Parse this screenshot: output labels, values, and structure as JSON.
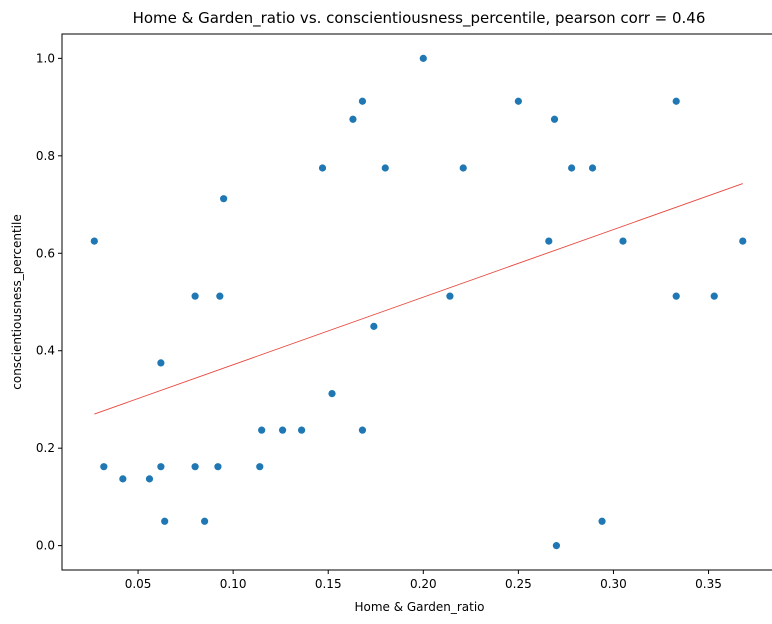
{
  "chart_data": {
    "type": "scatter",
    "title": "Home & Garden_ratio vs. conscientiousness_percentile, pearson corr = 0.46",
    "xlabel": "Home & Garden_ratio",
    "ylabel": "conscientiousness_percentile",
    "xlim": [
      0.01,
      0.386
    ],
    "ylim": [
      -0.05,
      1.05
    ],
    "x_ticks": [
      0.05,
      0.1,
      0.15,
      0.2,
      0.25,
      0.3,
      0.35
    ],
    "x_tick_labels": [
      "0.05",
      "0.10",
      "0.15",
      "0.20",
      "0.25",
      "0.30",
      "0.35"
    ],
    "y_ticks": [
      0.0,
      0.2,
      0.4,
      0.6,
      0.8,
      1.0
    ],
    "y_tick_labels": [
      "0.0",
      "0.2",
      "0.4",
      "0.6",
      "0.8",
      "1.0"
    ],
    "grid": false,
    "point_color": "#1f77b4",
    "trendline": {
      "color": "#e8473c",
      "x": [
        0.027,
        0.368
      ],
      "y": [
        0.27,
        0.743
      ]
    },
    "points": [
      {
        "x": 0.027,
        "y": 0.625
      },
      {
        "x": 0.032,
        "y": 0.162
      },
      {
        "x": 0.042,
        "y": 0.137
      },
      {
        "x": 0.056,
        "y": 0.137
      },
      {
        "x": 0.062,
        "y": 0.375
      },
      {
        "x": 0.062,
        "y": 0.162
      },
      {
        "x": 0.064,
        "y": 0.05
      },
      {
        "x": 0.08,
        "y": 0.512
      },
      {
        "x": 0.08,
        "y": 0.162
      },
      {
        "x": 0.085,
        "y": 0.05
      },
      {
        "x": 0.092,
        "y": 0.162
      },
      {
        "x": 0.093,
        "y": 0.512
      },
      {
        "x": 0.095,
        "y": 0.712
      },
      {
        "x": 0.114,
        "y": 0.162
      },
      {
        "x": 0.115,
        "y": 0.237
      },
      {
        "x": 0.126,
        "y": 0.237
      },
      {
        "x": 0.136,
        "y": 0.237
      },
      {
        "x": 0.147,
        "y": 0.775
      },
      {
        "x": 0.152,
        "y": 0.312
      },
      {
        "x": 0.163,
        "y": 0.875
      },
      {
        "x": 0.168,
        "y": 0.912
      },
      {
        "x": 0.168,
        "y": 0.237
      },
      {
        "x": 0.174,
        "y": 0.45
      },
      {
        "x": 0.18,
        "y": 0.775
      },
      {
        "x": 0.2,
        "y": 1.0
      },
      {
        "x": 0.214,
        "y": 0.512
      },
      {
        "x": 0.221,
        "y": 0.775
      },
      {
        "x": 0.25,
        "y": 0.912
      },
      {
        "x": 0.266,
        "y": 0.625
      },
      {
        "x": 0.269,
        "y": 0.875
      },
      {
        "x": 0.27,
        "y": 0.0
      },
      {
        "x": 0.278,
        "y": 0.775
      },
      {
        "x": 0.289,
        "y": 0.775
      },
      {
        "x": 0.294,
        "y": 0.05
      },
      {
        "x": 0.305,
        "y": 0.625
      },
      {
        "x": 0.333,
        "y": 0.912
      },
      {
        "x": 0.333,
        "y": 0.512
      },
      {
        "x": 0.353,
        "y": 0.512
      },
      {
        "x": 0.368,
        "y": 0.625
      }
    ]
  }
}
